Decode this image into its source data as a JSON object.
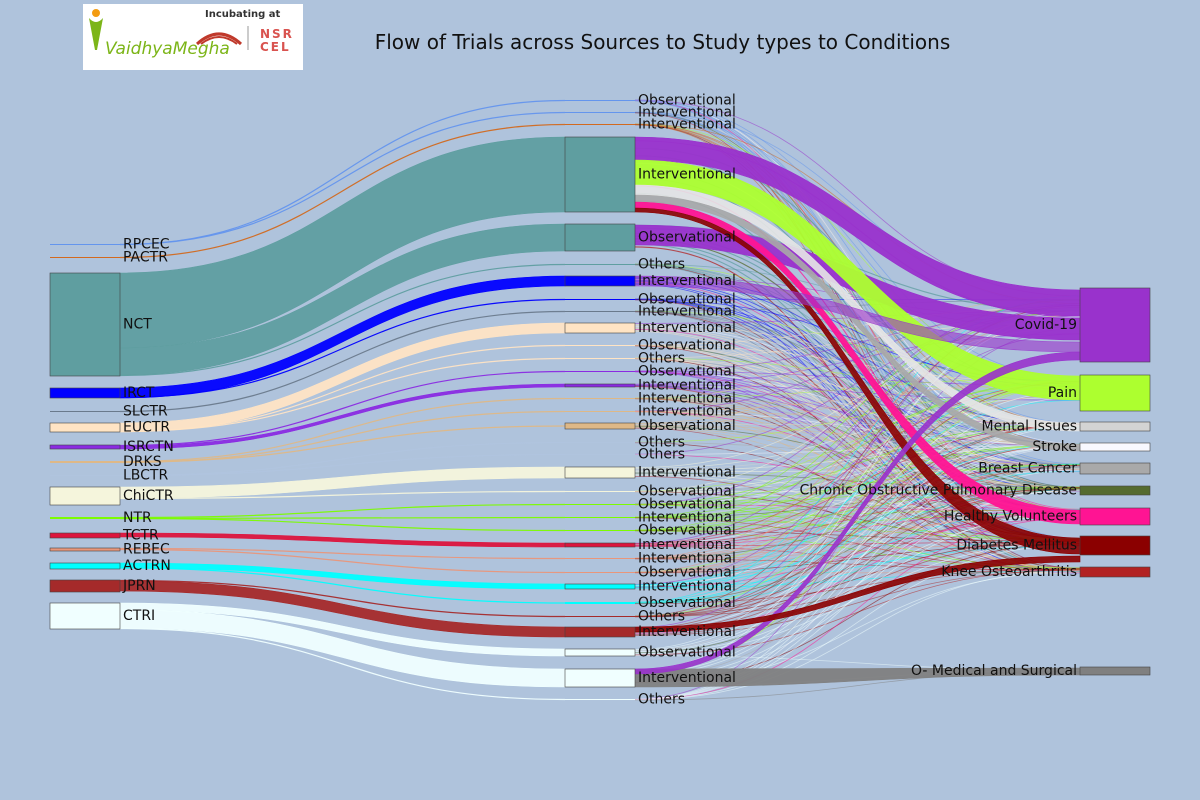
{
  "title": "Flow of Trials across Sources to Study types to Conditions",
  "logo": {
    "brand": "VaidhyaMegha",
    "incubator_text": "Incubating at",
    "partner": "NSRCEL",
    "colors": {
      "brand_green": "#7cb518",
      "brand_orange": "#f39c12",
      "iimb_red": "#c0392b",
      "nsrcel_red": "#d9534f"
    }
  },
  "background_color": "#afc3dc",
  "chart_data": {
    "type": "sankey",
    "title": "Flow of Trials across Sources to Study types to Conditions",
    "sources": [
      {
        "label": "RPCEC",
        "color": "#6495ed"
      },
      {
        "label": "PACTR",
        "color": "#d2691e"
      },
      {
        "label": "NCT",
        "color": "#5f9ea0"
      },
      {
        "label": "IRCT",
        "color": "#0000ff"
      },
      {
        "label": "SLCTR",
        "color": "#6a7a8c"
      },
      {
        "label": "EUCTR",
        "color": "#ffe4c4"
      },
      {
        "label": "ISRCTN",
        "color": "#8a2be2"
      },
      {
        "label": "DRKS",
        "color": "#deb887"
      },
      {
        "label": "LBCTR",
        "color": "#b0c4de"
      },
      {
        "label": "ChiCTR",
        "color": "#f5f5dc"
      },
      {
        "label": "NTR",
        "color": "#7cfc00"
      },
      {
        "label": "TCTR",
        "color": "#dc143c"
      },
      {
        "label": "REBEC",
        "color": "#e9967a"
      },
      {
        "label": "ACTRN",
        "color": "#00ffff"
      },
      {
        "label": "JPRN",
        "color": "#a52a2a"
      },
      {
        "label": "CTRI",
        "color": "#f0ffff"
      }
    ],
    "study_types": [
      {
        "label": "Observational",
        "source": "RPCEC"
      },
      {
        "label": "Interventional",
        "source": "RPCEC"
      },
      {
        "label": "Interventional",
        "source": "PACTR"
      },
      {
        "label": "Interventional",
        "source": "NCT"
      },
      {
        "label": "Observational",
        "source": "NCT"
      },
      {
        "label": "Others",
        "source": "NCT"
      },
      {
        "label": "Interventional",
        "source": "IRCT"
      },
      {
        "label": "Observational",
        "source": "IRCT"
      },
      {
        "label": "Interventional",
        "source": "SLCTR"
      },
      {
        "label": "Interventional",
        "source": "EUCTR"
      },
      {
        "label": "Observational",
        "source": "EUCTR"
      },
      {
        "label": "Others",
        "source": "EUCTR"
      },
      {
        "label": "Observational",
        "source": "ISRCTN"
      },
      {
        "label": "Interventional",
        "source": "ISRCTN"
      },
      {
        "label": "Interventional",
        "source": "DRKS"
      },
      {
        "label": "Interventional",
        "source": "DRKS"
      },
      {
        "label": "Observational",
        "source": "DRKS"
      },
      {
        "label": "Others",
        "source": "LBCTR"
      },
      {
        "label": "Others",
        "source": "LBCTR"
      },
      {
        "label": "Interventional",
        "source": "ChiCTR"
      },
      {
        "label": "Observational",
        "source": "ChiCTR"
      },
      {
        "label": "Observational",
        "source": "NTR"
      },
      {
        "label": "Interventional",
        "source": "NTR"
      },
      {
        "label": "Observational",
        "source": "NTR"
      },
      {
        "label": "Interventional",
        "source": "TCTR"
      },
      {
        "label": "Interventional",
        "source": "REBEC"
      },
      {
        "label": "Observational",
        "source": "REBEC"
      },
      {
        "label": "Interventional",
        "source": "ACTRN"
      },
      {
        "label": "Observational",
        "source": "ACTRN"
      },
      {
        "label": "Others",
        "source": "JPRN"
      },
      {
        "label": "Interventional",
        "source": "JPRN"
      },
      {
        "label": "Observational",
        "source": "CTRI"
      },
      {
        "label": "Interventional",
        "source": "CTRI"
      },
      {
        "label": "Others",
        "source": "CTRI"
      }
    ],
    "conditions": [
      {
        "label": "Covid-19",
        "color": "#9932cc"
      },
      {
        "label": "Pain",
        "color": "#adff2f"
      },
      {
        "label": "Mental Issues",
        "color": "#d3d3d3"
      },
      {
        "label": "Stroke",
        "color": "#f8f8ff"
      },
      {
        "label": "Breast Cancer",
        "color": "#a9a9a9"
      },
      {
        "label": "Chronic Obstructive Pulmonary Disease",
        "color": "#556b2f"
      },
      {
        "label": "Healthy Volunteers",
        "color": "#ff1493"
      },
      {
        "label": "Diabetes Mellitus",
        "color": "#8b0000"
      },
      {
        "label": "Knee Osteoarthritis",
        "color": "#b22222"
      },
      {
        "label": "O- Medical and Surgical",
        "color": "#808080"
      }
    ]
  }
}
